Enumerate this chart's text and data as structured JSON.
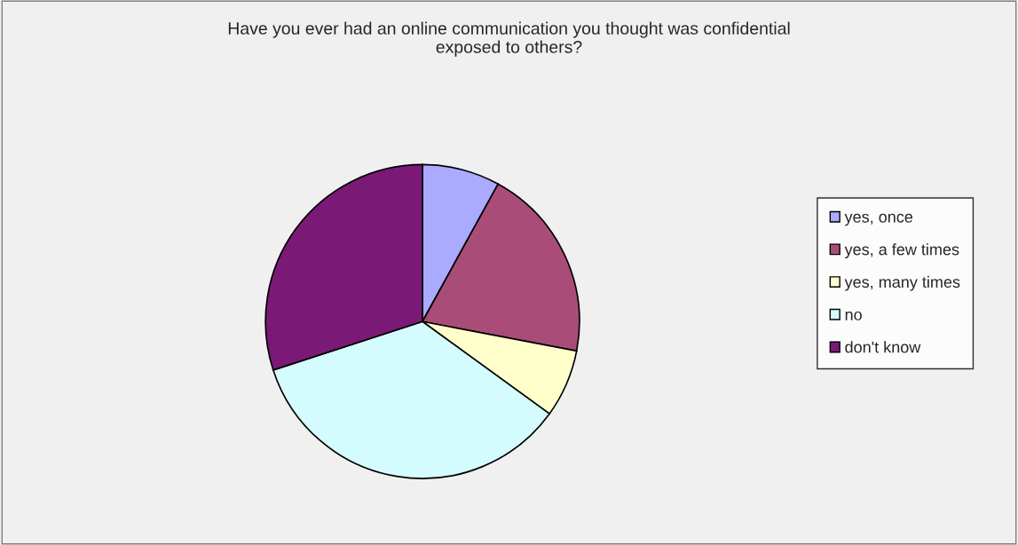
{
  "chart_data": {
    "type": "pie",
    "title": "Have you ever had an online communication you thought was confidential\nexposed to others?",
    "categories": [
      "yes, once",
      "yes, a few times",
      "yes, many times",
      "no",
      "don't know"
    ],
    "values": [
      8,
      20,
      7,
      35,
      30
    ],
    "colors": [
      "#aaaaff",
      "#aa4c78",
      "#ffffcc",
      "#d4fbfd",
      "#7b1976"
    ],
    "legend": "right"
  }
}
